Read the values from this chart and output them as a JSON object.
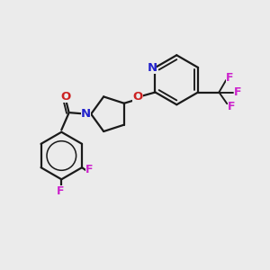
{
  "bg_color": "#ebebeb",
  "bond_color": "#1a1a1a",
  "bond_width": 1.6,
  "atom_colors": {
    "N": "#2222cc",
    "O": "#cc2222",
    "F": "#cc22cc",
    "C": "#1a1a1a"
  },
  "font_size_atom": 9.5,
  "font_size_F": 9.0,
  "figsize": [
    3.0,
    3.0
  ],
  "dpi": 100
}
